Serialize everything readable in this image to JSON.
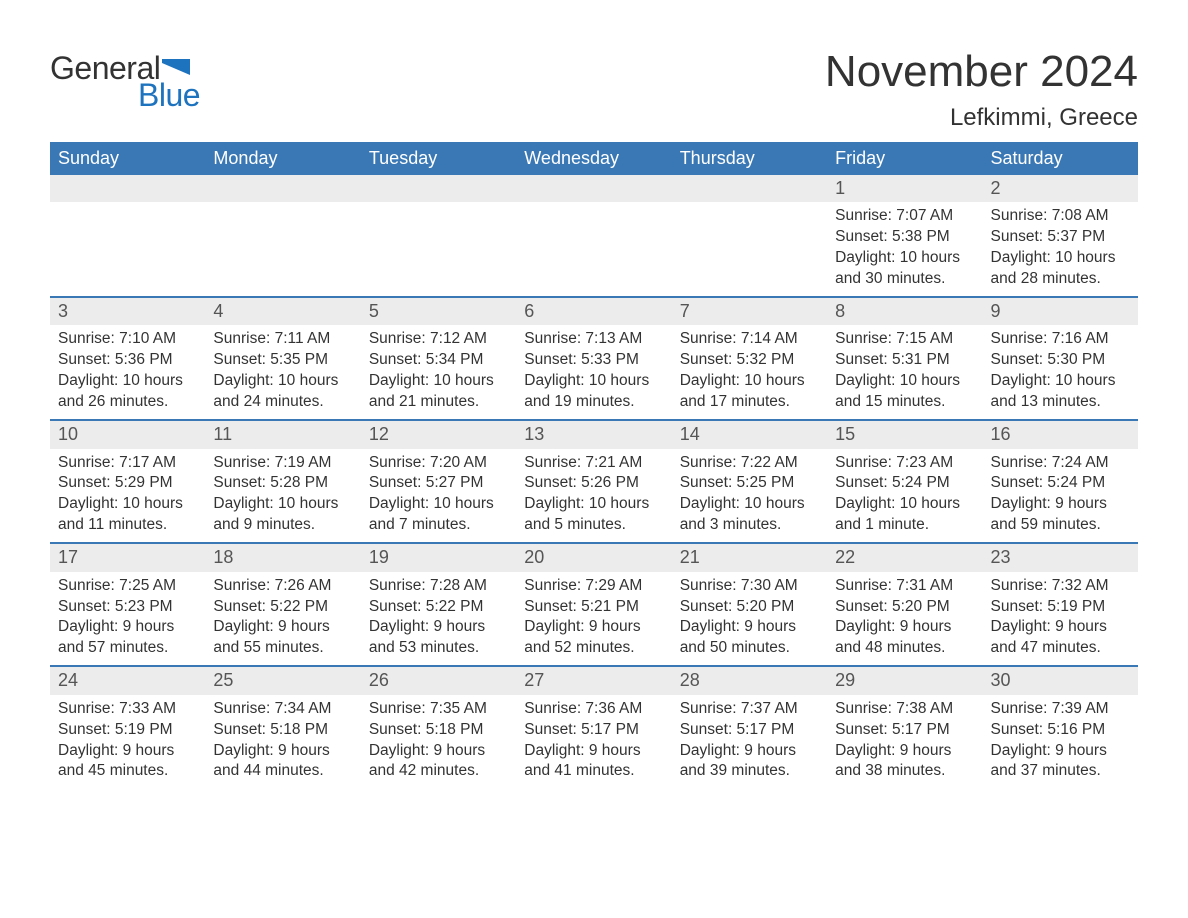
{
  "logo": {
    "word1": "General",
    "word2": "Blue",
    "flag_color": "#1e73be"
  },
  "title": "November 2024",
  "location": "Lefkimmi, Greece",
  "colors": {
    "header_bg": "#3a78b5",
    "header_text": "#ffffff",
    "row_divider": "#3a78b5",
    "daynum_bg": "#ececec",
    "text": "#333333",
    "logo_blue": "#1e73be"
  },
  "fonts": {
    "title_size_pt": 33,
    "location_size_pt": 18,
    "dow_size_pt": 14,
    "daynum_size_pt": 14,
    "body_size_pt": 12
  },
  "days_of_week": [
    "Sunday",
    "Monday",
    "Tuesday",
    "Wednesday",
    "Thursday",
    "Friday",
    "Saturday"
  ],
  "weeks": [
    [
      {
        "empty": true
      },
      {
        "empty": true
      },
      {
        "empty": true
      },
      {
        "empty": true
      },
      {
        "empty": true
      },
      {
        "num": "1",
        "sunrise": "Sunrise: 7:07 AM",
        "sunset": "Sunset: 5:38 PM",
        "daylight": "Daylight: 10 hours and 30 minutes."
      },
      {
        "num": "2",
        "sunrise": "Sunrise: 7:08 AM",
        "sunset": "Sunset: 5:37 PM",
        "daylight": "Daylight: 10 hours and 28 minutes."
      }
    ],
    [
      {
        "num": "3",
        "sunrise": "Sunrise: 7:10 AM",
        "sunset": "Sunset: 5:36 PM",
        "daylight": "Daylight: 10 hours and 26 minutes."
      },
      {
        "num": "4",
        "sunrise": "Sunrise: 7:11 AM",
        "sunset": "Sunset: 5:35 PM",
        "daylight": "Daylight: 10 hours and 24 minutes."
      },
      {
        "num": "5",
        "sunrise": "Sunrise: 7:12 AM",
        "sunset": "Sunset: 5:34 PM",
        "daylight": "Daylight: 10 hours and 21 minutes."
      },
      {
        "num": "6",
        "sunrise": "Sunrise: 7:13 AM",
        "sunset": "Sunset: 5:33 PM",
        "daylight": "Daylight: 10 hours and 19 minutes."
      },
      {
        "num": "7",
        "sunrise": "Sunrise: 7:14 AM",
        "sunset": "Sunset: 5:32 PM",
        "daylight": "Daylight: 10 hours and 17 minutes."
      },
      {
        "num": "8",
        "sunrise": "Sunrise: 7:15 AM",
        "sunset": "Sunset: 5:31 PM",
        "daylight": "Daylight: 10 hours and 15 minutes."
      },
      {
        "num": "9",
        "sunrise": "Sunrise: 7:16 AM",
        "sunset": "Sunset: 5:30 PM",
        "daylight": "Daylight: 10 hours and 13 minutes."
      }
    ],
    [
      {
        "num": "10",
        "sunrise": "Sunrise: 7:17 AM",
        "sunset": "Sunset: 5:29 PM",
        "daylight": "Daylight: 10 hours and 11 minutes."
      },
      {
        "num": "11",
        "sunrise": "Sunrise: 7:19 AM",
        "sunset": "Sunset: 5:28 PM",
        "daylight": "Daylight: 10 hours and 9 minutes."
      },
      {
        "num": "12",
        "sunrise": "Sunrise: 7:20 AM",
        "sunset": "Sunset: 5:27 PM",
        "daylight": "Daylight: 10 hours and 7 minutes."
      },
      {
        "num": "13",
        "sunrise": "Sunrise: 7:21 AM",
        "sunset": "Sunset: 5:26 PM",
        "daylight": "Daylight: 10 hours and 5 minutes."
      },
      {
        "num": "14",
        "sunrise": "Sunrise: 7:22 AM",
        "sunset": "Sunset: 5:25 PM",
        "daylight": "Daylight: 10 hours and 3 minutes."
      },
      {
        "num": "15",
        "sunrise": "Sunrise: 7:23 AM",
        "sunset": "Sunset: 5:24 PM",
        "daylight": "Daylight: 10 hours and 1 minute."
      },
      {
        "num": "16",
        "sunrise": "Sunrise: 7:24 AM",
        "sunset": "Sunset: 5:24 PM",
        "daylight": "Daylight: 9 hours and 59 minutes."
      }
    ],
    [
      {
        "num": "17",
        "sunrise": "Sunrise: 7:25 AM",
        "sunset": "Sunset: 5:23 PM",
        "daylight": "Daylight: 9 hours and 57 minutes."
      },
      {
        "num": "18",
        "sunrise": "Sunrise: 7:26 AM",
        "sunset": "Sunset: 5:22 PM",
        "daylight": "Daylight: 9 hours and 55 minutes."
      },
      {
        "num": "19",
        "sunrise": "Sunrise: 7:28 AM",
        "sunset": "Sunset: 5:22 PM",
        "daylight": "Daylight: 9 hours and 53 minutes."
      },
      {
        "num": "20",
        "sunrise": "Sunrise: 7:29 AM",
        "sunset": "Sunset: 5:21 PM",
        "daylight": "Daylight: 9 hours and 52 minutes."
      },
      {
        "num": "21",
        "sunrise": "Sunrise: 7:30 AM",
        "sunset": "Sunset: 5:20 PM",
        "daylight": "Daylight: 9 hours and 50 minutes."
      },
      {
        "num": "22",
        "sunrise": "Sunrise: 7:31 AM",
        "sunset": "Sunset: 5:20 PM",
        "daylight": "Daylight: 9 hours and 48 minutes."
      },
      {
        "num": "23",
        "sunrise": "Sunrise: 7:32 AM",
        "sunset": "Sunset: 5:19 PM",
        "daylight": "Daylight: 9 hours and 47 minutes."
      }
    ],
    [
      {
        "num": "24",
        "sunrise": "Sunrise: 7:33 AM",
        "sunset": "Sunset: 5:19 PM",
        "daylight": "Daylight: 9 hours and 45 minutes."
      },
      {
        "num": "25",
        "sunrise": "Sunrise: 7:34 AM",
        "sunset": "Sunset: 5:18 PM",
        "daylight": "Daylight: 9 hours and 44 minutes."
      },
      {
        "num": "26",
        "sunrise": "Sunrise: 7:35 AM",
        "sunset": "Sunset: 5:18 PM",
        "daylight": "Daylight: 9 hours and 42 minutes."
      },
      {
        "num": "27",
        "sunrise": "Sunrise: 7:36 AM",
        "sunset": "Sunset: 5:17 PM",
        "daylight": "Daylight: 9 hours and 41 minutes."
      },
      {
        "num": "28",
        "sunrise": "Sunrise: 7:37 AM",
        "sunset": "Sunset: 5:17 PM",
        "daylight": "Daylight: 9 hours and 39 minutes."
      },
      {
        "num": "29",
        "sunrise": "Sunrise: 7:38 AM",
        "sunset": "Sunset: 5:17 PM",
        "daylight": "Daylight: 9 hours and 38 minutes."
      },
      {
        "num": "30",
        "sunrise": "Sunrise: 7:39 AM",
        "sunset": "Sunset: 5:16 PM",
        "daylight": "Daylight: 9 hours and 37 minutes."
      }
    ]
  ]
}
